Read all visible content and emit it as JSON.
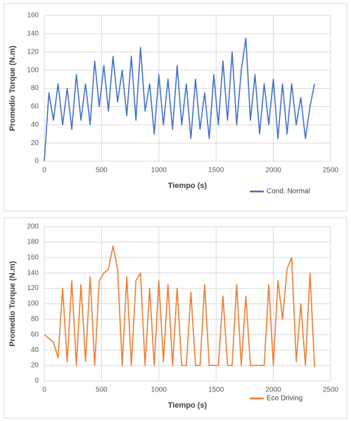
{
  "chart_data": [
    {
      "type": "line",
      "xlabel": "Tiempo (s)",
      "ylabel": "Promedio Torque (N.m)",
      "x": [
        0,
        40,
        80,
        120,
        160,
        200,
        240,
        280,
        320,
        360,
        400,
        440,
        480,
        520,
        560,
        600,
        640,
        680,
        720,
        760,
        800,
        840,
        880,
        920,
        960,
        1000,
        1040,
        1080,
        1120,
        1160,
        1200,
        1240,
        1280,
        1320,
        1360,
        1400,
        1440,
        1480,
        1520,
        1560,
        1600,
        1640,
        1680,
        1720,
        1760,
        1800,
        1840,
        1880,
        1920,
        1960,
        2000,
        2040,
        2080,
        2120,
        2160,
        2200,
        2240,
        2280,
        2320,
        2360
      ],
      "series": [
        {
          "name": "Cond. Normal",
          "color": "#4472c4",
          "values": [
            0,
            75,
            45,
            85,
            40,
            80,
            35,
            95,
            45,
            85,
            40,
            110,
            60,
            105,
            55,
            115,
            65,
            100,
            50,
            115,
            45,
            125,
            55,
            85,
            30,
            95,
            40,
            90,
            35,
            105,
            40,
            85,
            25,
            90,
            35,
            75,
            25,
            95,
            40,
            110,
            45,
            120,
            40,
            100,
            135,
            45,
            95,
            30,
            85,
            40,
            90,
            25,
            85,
            30,
            85,
            40,
            70,
            25,
            60,
            85
          ]
        }
      ],
      "xlim": [
        0,
        2500
      ],
      "ylim": [
        0,
        160
      ],
      "xticks": [
        0,
        500,
        1000,
        1500,
        2000,
        2500
      ],
      "yticks": [
        0,
        20,
        40,
        60,
        80,
        100,
        120,
        140,
        160
      ],
      "grid": true,
      "legend": "bottom right"
    },
    {
      "type": "line",
      "xlabel": "Tiempo (s)",
      "ylabel": "Promedio Torque (N.m)",
      "x": [
        0,
        40,
        80,
        120,
        160,
        200,
        240,
        280,
        320,
        360,
        400,
        440,
        480,
        520,
        560,
        600,
        640,
        680,
        720,
        760,
        800,
        840,
        880,
        920,
        960,
        1000,
        1040,
        1080,
        1120,
        1160,
        1200,
        1240,
        1280,
        1320,
        1360,
        1400,
        1440,
        1480,
        1520,
        1560,
        1600,
        1640,
        1680,
        1720,
        1760,
        1800,
        1840,
        1880,
        1920,
        1960,
        2000,
        2040,
        2080,
        2120,
        2160,
        2200,
        2240,
        2280,
        2320,
        2360
      ],
      "series": [
        {
          "name": "Eco Driving",
          "color": "#ed7d31",
          "values": [
            60,
            55,
            50,
            30,
            120,
            25,
            130,
            20,
            125,
            25,
            135,
            20,
            130,
            140,
            145,
            175,
            145,
            20,
            135,
            20,
            130,
            140,
            20,
            120,
            20,
            130,
            25,
            125,
            20,
            120,
            20,
            20,
            115,
            20,
            20,
            125,
            20,
            20,
            20,
            110,
            20,
            20,
            125,
            20,
            110,
            20,
            20,
            20,
            20,
            125,
            20,
            130,
            80,
            145,
            160,
            25,
            100,
            20,
            140,
            18
          ]
        }
      ],
      "xlim": [
        0,
        2500
      ],
      "ylim": [
        0,
        200
      ],
      "xticks": [
        0,
        500,
        1000,
        1500,
        2000,
        2500
      ],
      "yticks": [
        0,
        20,
        40,
        60,
        80,
        100,
        120,
        140,
        160,
        180,
        200
      ],
      "grid": true,
      "legend": "bottom right"
    }
  ]
}
